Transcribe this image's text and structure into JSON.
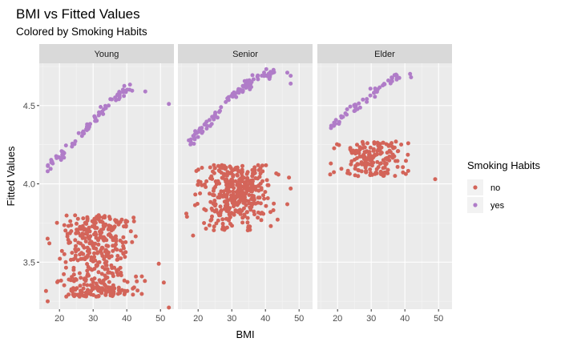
{
  "chart_data": {
    "type": "scatter",
    "title": "BMI vs Fitted Values",
    "subtitle": "Colored by Smoking Habits",
    "xlabel": "BMI",
    "ylabel": "Fitted Values",
    "xlim": [
      14,
      54
    ],
    "ylim": [
      3.2,
      4.77
    ],
    "x_ticks": [
      20,
      30,
      40,
      50
    ],
    "y_ticks": [
      3.5,
      4.0,
      4.5
    ],
    "y_tick_labels": [
      "3.5",
      "4.0",
      "4.5"
    ],
    "grid": true,
    "legend": {
      "title": "Smoking Habits",
      "position": "right",
      "entries": [
        {
          "label": "no",
          "color": "#D36459"
        },
        {
          "label": "yes",
          "color": "#B07CC8"
        }
      ]
    },
    "panels": [
      "Young",
      "Senior",
      "Elder"
    ],
    "series": [
      {
        "name": "no",
        "color": "#D36459",
        "panels": {
          "Young": {
            "bmi_range": [
              16,
              52
            ],
            "bands": [
              {
                "y": [
                  3.28,
                  3.34
                ],
                "n": 90
              },
              {
                "y": [
                  3.34,
                  3.55
                ],
                "n": 120
              },
              {
                "y": [
                  3.55,
                  3.8
                ],
                "n": 200
              }
            ],
            "extras": [
              {
                "x": 17.0,
                "y": 3.62
              },
              {
                "x": 49.5,
                "y": 3.49
              },
              {
                "x": 51.0,
                "y": 3.37
              },
              {
                "x": 52.5,
                "y": 3.21
              },
              {
                "x": 16.5,
                "y": 3.25
              }
            ]
          },
          "Senior": {
            "bmi_range": [
              16.5,
              48
            ],
            "bands": [
              {
                "y": [
                  3.7,
                  3.8
                ],
                "n": 40
              },
              {
                "y": [
                  3.8,
                  4.12
                ],
                "n": 330
              }
            ],
            "extras": [
              {
                "x": 18.5,
                "y": 3.67
              },
              {
                "x": 16.5,
                "y": 3.81
              },
              {
                "x": 16.7,
                "y": 3.79
              },
              {
                "x": 47.5,
                "y": 3.97
              },
              {
                "x": 47.0,
                "y": 4.04
              },
              {
                "x": 46.5,
                "y": 3.87
              }
            ]
          },
          "Elder": {
            "bmi_range": [
              17.5,
              44
            ],
            "bands": [
              {
                "y": [
                  4.05,
                  4.27
                ],
                "n": 170
              }
            ],
            "extras": [
              {
                "x": 49.0,
                "y": 4.03
              },
              {
                "x": 17.8,
                "y": 4.06
              },
              {
                "x": 18.0,
                "y": 4.13
              }
            ]
          }
        }
      },
      {
        "name": "yes",
        "color": "#B07CC8",
        "panels": {
          "Young": {
            "trend": {
              "x": [
                16,
                23,
                30,
                36,
                42
              ],
              "y": [
                4.1,
                4.23,
                4.4,
                4.56,
                4.62
              ]
            },
            "n": 80,
            "extras": [
              {
                "x": 45.5,
                "y": 4.59
              },
              {
                "x": 52.5,
                "y": 4.51
              },
              {
                "x": 16.5,
                "y": 4.08
              }
            ]
          },
          "Senior": {
            "trend": {
              "x": [
                17,
                23,
                30,
                36,
                43
              ],
              "y": [
                4.26,
                4.38,
                4.55,
                4.66,
                4.72
              ]
            },
            "n": 105,
            "extras": [
              {
                "x": 47.5,
                "y": 4.64
              },
              {
                "x": 47.5,
                "y": 4.69
              },
              {
                "x": 46.5,
                "y": 4.71
              }
            ]
          },
          "Elder": {
            "trend": {
              "x": [
                18,
                24,
                30,
                36,
                42
              ],
              "y": [
                4.36,
                4.47,
                4.58,
                4.67,
                4.73
              ]
            },
            "n": 55,
            "extras": []
          }
        }
      }
    ]
  }
}
